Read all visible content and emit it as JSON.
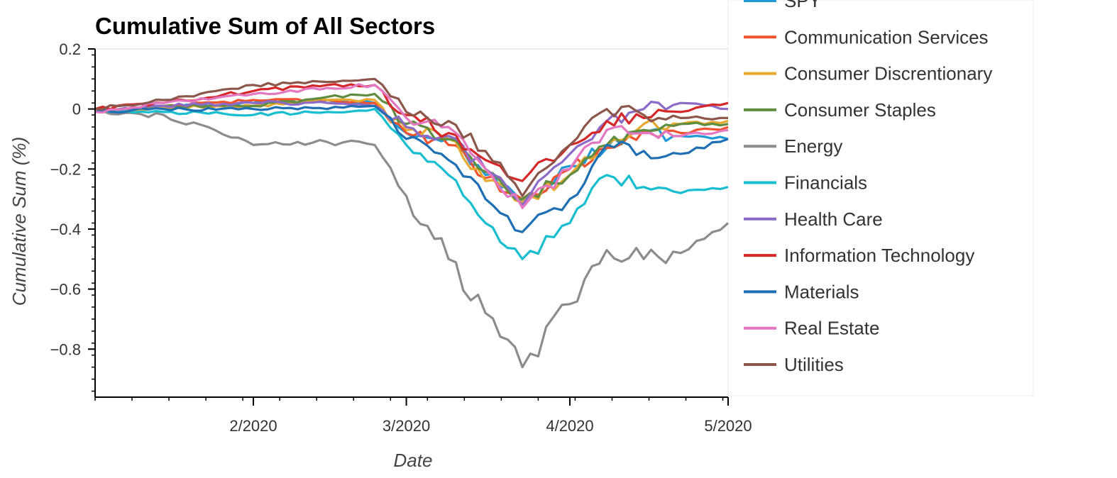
{
  "chart_data": {
    "type": "line",
    "title": "Cumulative Sum of All Sectors",
    "xlabel": "Date",
    "ylabel": "Cumulative Sum (%)",
    "x_range": [
      "2020-01-02",
      "2020-05-01"
    ],
    "ylim": [
      -0.96,
      0.2
    ],
    "x_ticks": [
      {
        "date": "2020-02-01",
        "label": "2/2020"
      },
      {
        "date": "2020-03-01",
        "label": "3/2020"
      },
      {
        "date": "2020-04-01",
        "label": "4/2020"
      },
      {
        "date": "2020-05-01",
        "label": "5/2020"
      }
    ],
    "y_ticks": [
      {
        "value": 0.2,
        "label": "0.2"
      },
      {
        "value": 0,
        "label": "0"
      },
      {
        "value": -0.2,
        "label": "−0.2"
      },
      {
        "value": -0.4,
        "label": "−0.4"
      },
      {
        "value": -0.6,
        "label": "−0.6"
      },
      {
        "value": -0.8,
        "label": "−0.8"
      }
    ],
    "grid": false,
    "legend_placement": "right",
    "keypoint_dates": [
      "2020-01-02",
      "2020-01-15",
      "2020-02-01",
      "2020-02-15",
      "2020-02-24",
      "2020-03-01",
      "2020-03-09",
      "2020-03-16",
      "2020-03-23",
      "2020-04-01",
      "2020-04-08",
      "2020-04-15",
      "2020-04-22",
      "2020-05-01"
    ],
    "series": [
      {
        "name": "SPY",
        "color": "#1f9ad6",
        "values": [
          -0.01,
          0.005,
          0.02,
          0.03,
          0.02,
          -0.08,
          -0.1,
          -0.22,
          -0.31,
          -0.19,
          -0.13,
          -0.08,
          -0.09,
          -0.1
        ]
      },
      {
        "name": "Communication Services",
        "color": "#f0522d",
        "values": [
          -0.01,
          0.01,
          0.03,
          0.03,
          0.02,
          -0.08,
          -0.12,
          -0.23,
          -0.3,
          -0.2,
          -0.13,
          -0.07,
          -0.08,
          -0.06
        ]
      },
      {
        "name": "Consumer Discrentionary",
        "color": "#e6a82e",
        "values": [
          -0.01,
          0.005,
          0.01,
          0.03,
          0.03,
          -0.07,
          -0.1,
          -0.24,
          -0.31,
          -0.22,
          -0.12,
          -0.05,
          -0.05,
          -0.04
        ]
      },
      {
        "name": "Consumer Staples",
        "color": "#5f8d3f",
        "values": [
          -0.01,
          0.01,
          0.01,
          0.04,
          0.05,
          -0.05,
          -0.1,
          -0.21,
          -0.3,
          -0.22,
          -0.12,
          -0.07,
          -0.05,
          -0.05
        ]
      },
      {
        "name": "Energy",
        "color": "#8c8c8c",
        "values": [
          -0.01,
          -0.02,
          -0.12,
          -0.11,
          -0.12,
          -0.29,
          -0.5,
          -0.68,
          -0.86,
          -0.65,
          -0.47,
          -0.5,
          -0.48,
          -0.38
        ]
      },
      {
        "name": "Financials",
        "color": "#17becf",
        "values": [
          -0.01,
          -0.01,
          -0.02,
          -0.01,
          0.0,
          -0.12,
          -0.22,
          -0.38,
          -0.5,
          -0.38,
          -0.22,
          -0.26,
          -0.28,
          -0.26
        ]
      },
      {
        "name": "Health Care",
        "color": "#8c6bc8",
        "values": [
          -0.01,
          0.01,
          0.02,
          0.02,
          0.01,
          -0.06,
          -0.09,
          -0.2,
          -0.32,
          -0.15,
          -0.04,
          0.0,
          0.02,
          0.0
        ]
      },
      {
        "name": "Information Technology",
        "color": "#d62728",
        "values": [
          0.0,
          0.02,
          0.06,
          0.08,
          0.08,
          -0.02,
          -0.08,
          -0.17,
          -0.24,
          -0.12,
          -0.04,
          -0.03,
          -0.01,
          0.02
        ]
      },
      {
        "name": "Materials",
        "color": "#1f6fb4",
        "values": [
          -0.01,
          0.0,
          0.0,
          0.0,
          0.01,
          -0.1,
          -0.17,
          -0.3,
          -0.41,
          -0.3,
          -0.12,
          -0.14,
          -0.15,
          -0.1
        ]
      },
      {
        "name": "Real Estate",
        "color": "#e377c2",
        "values": [
          -0.01,
          0.02,
          0.05,
          0.07,
          0.08,
          -0.03,
          -0.06,
          -0.2,
          -0.33,
          -0.2,
          -0.07,
          -0.08,
          -0.09,
          -0.07
        ]
      },
      {
        "name": "Utilities",
        "color": "#8c564b",
        "values": [
          0.0,
          0.03,
          0.08,
          0.09,
          0.1,
          -0.01,
          -0.04,
          -0.14,
          -0.29,
          -0.12,
          0.0,
          -0.02,
          -0.03,
          -0.03
        ]
      }
    ]
  }
}
